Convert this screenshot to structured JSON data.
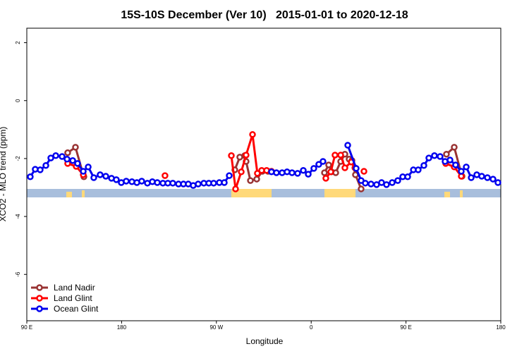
{
  "chart_data": {
    "type": "line",
    "title": "15S-10S December (Ver 10)   2015-01-01 to 2020-12-18",
    "x_label": "Longitude",
    "y_label": "XCO2 - MLO trend (ppm)",
    "xlim": [
      90,
      540
    ],
    "ylim": [
      -7.6,
      2.5
    ],
    "xticks": [
      {
        "value": 90,
        "label": "90 E"
      },
      {
        "value": 180,
        "label": "180"
      },
      {
        "value": 270,
        "label": "90 W"
      },
      {
        "value": 360,
        "label": "0"
      },
      {
        "value": 450,
        "label": "90 E"
      },
      {
        "value": 540,
        "label": "180"
      }
    ],
    "yticks": [
      -6,
      -4,
      -2,
      0,
      2
    ],
    "legend": "bottom-left",
    "series": [
      {
        "name": "Land Nadir",
        "color": "#993333",
        "x": [
          128.8,
          136.2,
          144.2,
          null,
          287.5,
          292.2,
          296.9,
          298.2,
          302.3,
          308.3,
          313.6,
          319.0,
          null,
          372.6,
          376.6,
          379.3,
          383.3,
          388.0,
          392.0,
          396.0,
          398.7,
          402.0,
          407.4,
          null,
          488.4,
          495.8,
          503.2
        ],
        "values": [
          -1.8,
          -1.61,
          -2.63,
          null,
          -2.39,
          -1.95,
          -1.9,
          -2.1,
          -2.76,
          -2.71,
          -2.44,
          -2.44,
          null,
          -2.49,
          -2.22,
          -2.46,
          -2.49,
          -2.1,
          -1.85,
          -2.02,
          -2.07,
          -2.56,
          -3.05,
          null,
          -1.85,
          -1.61,
          -2.61
        ]
      },
      {
        "name": "Land Glint",
        "color": "#ff0000",
        "x": [
          128.8,
          136.9,
          143.6,
          null,
          221.2,
          null,
          284.2,
          288.2,
          293.6,
          298.2,
          304.3,
          308.9,
          313.0,
          317.7,
          322.3,
          null,
          373.9,
          378.6,
          382.6,
          388.0,
          392.0,
          398.1,
          401.5,
          null,
          410.1,
          null,
          487.7,
          495.8,
          502.5
        ],
        "values": [
          -2.17,
          -2.27,
          -2.56,
          null,
          -2.59,
          null,
          -1.9,
          -3.05,
          -2.46,
          -1.88,
          -1.17,
          -2.51,
          -2.41,
          -2.41,
          -2.44,
          null,
          -2.68,
          -2.46,
          -1.88,
          -1.88,
          -2.32,
          -2.12,
          -2.32,
          null,
          -2.44,
          null,
          -2.17,
          -2.29,
          -2.61
        ]
      },
      {
        "name": "Ocean Glint",
        "color": "#0000ee",
        "x": [
          93.3,
          98.0,
          102.7,
          108.1,
          112.8,
          117.5,
          123.5,
          128.2,
          133.6,
          138.2,
          143.6,
          148.3,
          153.6,
          159.6,
          165.0,
          170.4,
          175.0,
          179.7,
          184.4,
          189.8,
          194.5,
          199.1,
          204.5,
          209.2,
          213.9,
          219.2,
          223.9,
          228.6,
          234.0,
          238.7,
          243.3,
          248.0,
          252.7,
          258.1,
          262.8,
          267.4,
          272.8,
          277.5,
          282.2,
          null,
          322.3,
          327.0,
          332.4,
          337.1,
          341.8,
          347.1,
          352.5,
          357.2,
          362.5,
          367.2,
          371.2,
          null,
          394.7,
          402.7,
          407.4,
          411.4,
          416.8,
          422.1,
          426.8,
          431.5,
          436.9,
          442.2,
          446.9,
          451.6,
          457.0,
          461.6,
          467.0,
          471.7,
          477.0,
          482.4,
          487.1,
          491.8,
          497.1,
          502.5,
          507.2,
          511.9,
          517.2,
          521.9,
          527.3,
          532.6,
          537.3
        ],
        "values": [
          -2.63,
          -2.37,
          -2.39,
          -2.24,
          -1.98,
          -1.9,
          -1.93,
          -2.02,
          -2.07,
          -2.17,
          -2.44,
          -2.29,
          -2.66,
          -2.56,
          -2.61,
          -2.68,
          -2.73,
          -2.83,
          -2.78,
          -2.8,
          -2.83,
          -2.78,
          -2.85,
          -2.8,
          -2.83,
          -2.85,
          -2.85,
          -2.85,
          -2.88,
          -2.88,
          -2.88,
          -2.93,
          -2.88,
          -2.85,
          -2.85,
          -2.85,
          -2.83,
          -2.83,
          -2.59,
          null,
          -2.46,
          -2.49,
          -2.49,
          -2.46,
          -2.49,
          -2.51,
          -2.41,
          -2.54,
          -2.34,
          -2.2,
          -2.1,
          null,
          -1.54,
          -2.34,
          -2.76,
          -2.85,
          -2.88,
          -2.9,
          -2.83,
          -2.9,
          -2.83,
          -2.76,
          -2.63,
          -2.63,
          -2.39,
          -2.39,
          -2.24,
          -1.98,
          -1.9,
          -1.93,
          -2.1,
          -2.05,
          -2.22,
          -2.44,
          -2.29,
          -2.66,
          -2.56,
          -2.61,
          -2.66,
          -2.71,
          -2.83
        ]
      }
    ]
  }
}
